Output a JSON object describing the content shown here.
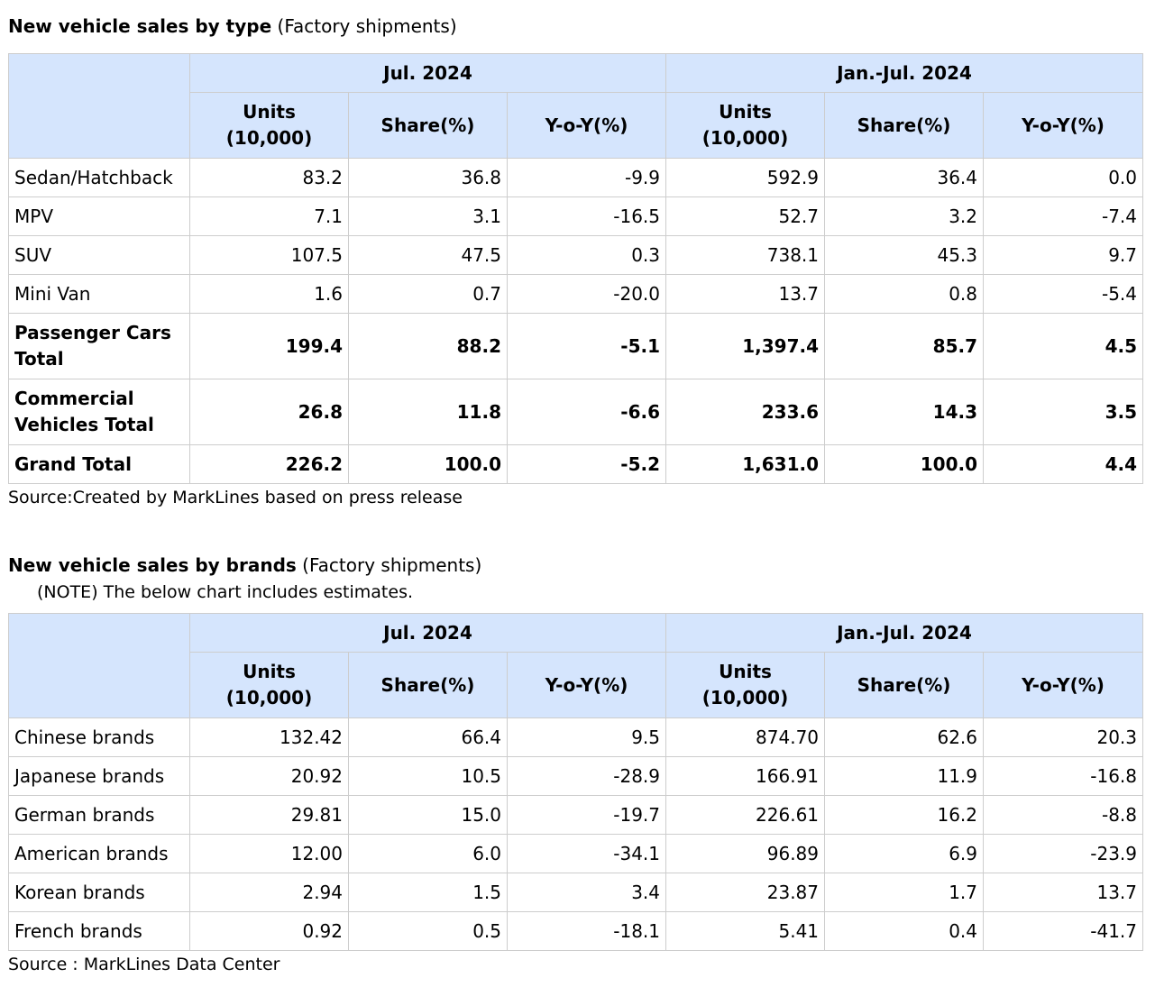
{
  "type_section": {
    "title_bold": "New vehicle sales by type",
    "title_rest": " (Factory shipments)",
    "period1": "Jul. 2024",
    "period2": "Jan.-Jul. 2024",
    "col_units_1": "Units",
    "col_units_2": "(10,000)",
    "col_share": "Share(%)",
    "col_yoy": "Y-o-Y(%)",
    "rows": [
      {
        "label": "Sedan/Hatchback",
        "v": [
          "83.2",
          "36.8",
          "-9.9",
          "592.9",
          "36.4",
          "0.0"
        ]
      },
      {
        "label": "MPV",
        "v": [
          "7.1",
          "3.1",
          "-16.5",
          "52.7",
          "3.2",
          "-7.4"
        ]
      },
      {
        "label": "SUV",
        "v": [
          "107.5",
          "47.5",
          "0.3",
          "738.1",
          "45.3",
          "9.7"
        ]
      },
      {
        "label": "Mini Van",
        "v": [
          "1.6",
          "0.7",
          "-20.0",
          "13.7",
          "0.8",
          "-5.4"
        ]
      },
      {
        "label": "Passenger Cars Total",
        "v": [
          "199.4",
          "88.2",
          "-5.1",
          "1,397.4",
          "85.7",
          "4.5"
        ]
      },
      {
        "label": "Commercial Vehicles Total",
        "v": [
          "26.8",
          "11.8",
          "-6.6",
          "233.6",
          "14.3",
          "3.5"
        ]
      },
      {
        "label": "Grand Total",
        "v": [
          "226.2",
          "100.0",
          "-5.2",
          "1,631.0",
          "100.0",
          "4.4"
        ]
      }
    ],
    "source": "Source:Created by MarkLines based on press release"
  },
  "brand_section": {
    "title_bold": "New vehicle sales by brands",
    "title_rest": " (Factory shipments)",
    "note": "(NOTE) The below chart includes estimates.",
    "period1": "Jul. 2024",
    "period2": "Jan.-Jul. 2024",
    "col_units_1": "Units",
    "col_units_2": "(10,000)",
    "col_share": "Share(%)",
    "col_yoy": "Y-o-Y(%)",
    "rows": [
      {
        "label": "Chinese brands",
        "v": [
          "132.42",
          "66.4",
          "9.5",
          "874.70",
          "62.6",
          "20.3"
        ]
      },
      {
        "label": "Japanese brands",
        "v": [
          "20.92",
          "10.5",
          "-28.9",
          "166.91",
          "11.9",
          "-16.8"
        ]
      },
      {
        "label": "German brands",
        "v": [
          "29.81",
          "15.0",
          "-19.7",
          "226.61",
          "16.2",
          "-8.8"
        ]
      },
      {
        "label": "American brands",
        "v": [
          "12.00",
          "6.0",
          "-34.1",
          "96.89",
          "6.9",
          "-23.9"
        ]
      },
      {
        "label": "Korean brands",
        "v": [
          "2.94",
          "1.5",
          "3.4",
          "23.87",
          "1.7",
          "13.7"
        ]
      },
      {
        "label": "French brands",
        "v": [
          "0.92",
          "0.5",
          "-18.1",
          "5.41",
          "0.4",
          "-41.7"
        ]
      }
    ],
    "source": "Source : MarkLines Data Center"
  },
  "colors": {
    "header_bg": "#d5e5fd",
    "border": "#cdcdcd"
  }
}
